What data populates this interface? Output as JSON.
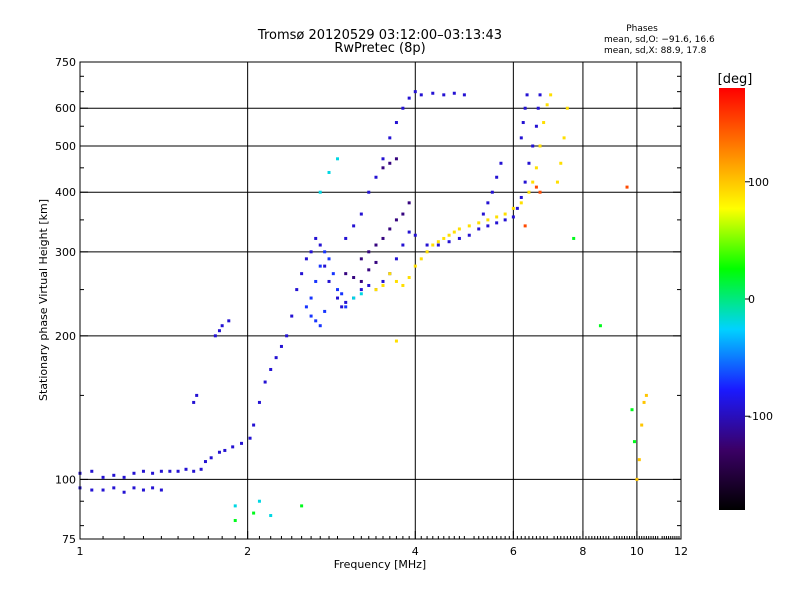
{
  "chart_data": {
    "type": "scatter",
    "title": "Tromsø 20120529 03:12:00–03:13:43",
    "subtitle": "RwPretec (8p)",
    "xlabel": "Frequency [MHz]",
    "ylabel": "Stationary phase Virtual Height [km]",
    "x_scale": "log",
    "y_scale": "log",
    "xlim": [
      1,
      12
    ],
    "ylim": [
      75,
      750
    ],
    "x_ticks": [
      1,
      2,
      4,
      6,
      8,
      10,
      12
    ],
    "y_ticks": [
      75,
      100,
      200,
      300,
      400,
      500,
      600,
      750
    ],
    "x_grid": [
      2,
      4,
      6,
      8,
      10
    ],
    "y_grid": [
      100,
      200,
      300,
      400,
      500,
      600
    ],
    "grid": true,
    "phase_stats": {
      "heading": "Phases",
      "line_o": "mean, sd,O: −91.6, 16.6",
      "line_x": "mean, sd,X:  88.9, 17.8"
    },
    "colorbar": {
      "label": "[deg]",
      "ticks": [
        100,
        0,
        -100
      ],
      "range": [
        -180,
        180
      ],
      "colors": [
        "#000000",
        "#3b0066",
        "#1a1aff",
        "#00d2ff",
        "#00ff00",
        "#ffff00",
        "#ff7f00",
        "#ff0000"
      ]
    },
    "series": [
      {
        "phase": -92,
        "points": [
          [
            1.0,
            96
          ],
          [
            1.05,
            95
          ],
          [
            1.1,
            95
          ],
          [
            1.15,
            96
          ],
          [
            1.2,
            94
          ],
          [
            1.25,
            96
          ],
          [
            1.3,
            95
          ],
          [
            1.35,
            96
          ],
          [
            1.4,
            95
          ],
          [
            1.0,
            103
          ],
          [
            1.05,
            104
          ],
          [
            1.1,
            101
          ],
          [
            1.15,
            102
          ],
          [
            1.2,
            101
          ],
          [
            1.25,
            103
          ],
          [
            1.3,
            104
          ],
          [
            1.35,
            103
          ],
          [
            1.4,
            104
          ],
          [
            1.45,
            104
          ],
          [
            1.5,
            104
          ],
          [
            1.55,
            105
          ],
          [
            1.6,
            104
          ],
          [
            1.65,
            105
          ],
          [
            1.68,
            109
          ],
          [
            1.72,
            111
          ],
          [
            1.78,
            114
          ],
          [
            1.82,
            115
          ],
          [
            1.88,
            117
          ],
          [
            1.95,
            119
          ],
          [
            2.02,
            122
          ],
          [
            2.05,
            130
          ],
          [
            2.1,
            145
          ],
          [
            2.15,
            160
          ],
          [
            2.2,
            170
          ],
          [
            2.25,
            180
          ],
          [
            2.3,
            190
          ],
          [
            2.35,
            200
          ],
          [
            1.6,
            145
          ],
          [
            1.62,
            150
          ],
          [
            1.75,
            200
          ],
          [
            1.78,
            205
          ],
          [
            1.8,
            210
          ],
          [
            1.85,
            215
          ],
          [
            2.4,
            220
          ],
          [
            2.45,
            250
          ],
          [
            2.5,
            270
          ],
          [
            2.55,
            290
          ],
          [
            2.6,
            300
          ],
          [
            2.65,
            320
          ],
          [
            2.7,
            310
          ],
          [
            2.75,
            280
          ],
          [
            2.8,
            260
          ],
          [
            2.9,
            240
          ],
          [
            2.95,
            230
          ],
          [
            3.0,
            235
          ],
          [
            3.1,
            240
          ],
          [
            3.2,
            250
          ],
          [
            3.3,
            255
          ],
          [
            3.4,
            250
          ],
          [
            3.5,
            260
          ],
          [
            3.6,
            270
          ],
          [
            3.7,
            290
          ],
          [
            3.8,
            310
          ],
          [
            3.9,
            330
          ],
          [
            4.0,
            325
          ],
          [
            4.2,
            310
          ],
          [
            4.4,
            310
          ],
          [
            4.6,
            315
          ],
          [
            4.8,
            320
          ],
          [
            5.0,
            325
          ],
          [
            5.2,
            335
          ],
          [
            5.4,
            340
          ],
          [
            5.6,
            345
          ],
          [
            5.8,
            350
          ],
          [
            6.0,
            355
          ],
          [
            6.1,
            370
          ],
          [
            6.2,
            390
          ],
          [
            6.3,
            420
          ],
          [
            6.4,
            460
          ],
          [
            6.5,
            500
          ],
          [
            6.6,
            550
          ],
          [
            6.65,
            600
          ],
          [
            6.7,
            640
          ],
          [
            6.2,
            520
          ],
          [
            6.25,
            560
          ],
          [
            6.3,
            600
          ],
          [
            6.35,
            640
          ],
          [
            5.3,
            360
          ],
          [
            5.4,
            380
          ],
          [
            5.5,
            400
          ],
          [
            5.6,
            430
          ],
          [
            5.7,
            460
          ],
          [
            3.0,
            320
          ],
          [
            3.1,
            340
          ],
          [
            3.2,
            360
          ],
          [
            3.3,
            400
          ],
          [
            3.4,
            430
          ],
          [
            3.5,
            470
          ],
          [
            3.6,
            520
          ],
          [
            3.7,
            560
          ],
          [
            3.8,
            600
          ],
          [
            3.9,
            630
          ],
          [
            4.0,
            650
          ],
          [
            4.1,
            640
          ],
          [
            4.3,
            645
          ],
          [
            4.5,
            640
          ],
          [
            4.7,
            645
          ],
          [
            4.9,
            640
          ]
        ]
      },
      {
        "phase": -70,
        "points": [
          [
            2.6,
            240
          ],
          [
            2.65,
            260
          ],
          [
            2.7,
            280
          ],
          [
            2.75,
            300
          ],
          [
            2.8,
            290
          ],
          [
            2.85,
            270
          ],
          [
            2.9,
            250
          ],
          [
            2.95,
            245
          ],
          [
            3.0,
            230
          ],
          [
            2.55,
            230
          ],
          [
            2.6,
            220
          ],
          [
            2.65,
            215
          ],
          [
            2.7,
            210
          ],
          [
            2.75,
            225
          ]
        ]
      },
      {
        "phase": -120,
        "points": [
          [
            3.2,
            290
          ],
          [
            3.3,
            300
          ],
          [
            3.4,
            310
          ],
          [
            3.5,
            320
          ],
          [
            3.6,
            335
          ],
          [
            3.7,
            350
          ],
          [
            3.8,
            360
          ],
          [
            3.9,
            380
          ],
          [
            3.0,
            270
          ],
          [
            3.1,
            265
          ],
          [
            3.2,
            260
          ],
          [
            3.3,
            275
          ],
          [
            3.4,
            285
          ],
          [
            3.5,
            450
          ],
          [
            3.6,
            460
          ],
          [
            3.7,
            470
          ]
        ]
      },
      {
        "phase": 90,
        "points": [
          [
            3.6,
            270
          ],
          [
            3.7,
            260
          ],
          [
            3.8,
            255
          ],
          [
            3.9,
            265
          ],
          [
            4.0,
            280
          ],
          [
            4.1,
            290
          ],
          [
            4.2,
            300
          ],
          [
            4.3,
            310
          ],
          [
            4.4,
            315
          ],
          [
            4.5,
            320
          ],
          [
            4.6,
            325
          ],
          [
            4.7,
            330
          ],
          [
            4.8,
            335
          ],
          [
            5.0,
            340
          ],
          [
            5.2,
            345
          ],
          [
            5.4,
            350
          ],
          [
            5.6,
            355
          ],
          [
            5.8,
            360
          ],
          [
            6.0,
            370
          ],
          [
            6.2,
            380
          ],
          [
            6.4,
            400
          ],
          [
            6.5,
            420
          ],
          [
            6.6,
            450
          ],
          [
            6.7,
            500
          ],
          [
            6.8,
            560
          ],
          [
            6.9,
            610
          ],
          [
            7.0,
            640
          ],
          [
            7.2,
            420
          ],
          [
            7.3,
            460
          ],
          [
            7.4,
            520
          ],
          [
            7.5,
            600
          ],
          [
            3.4,
            250
          ],
          [
            3.5,
            255
          ],
          [
            3.7,
            195
          ]
        ]
      },
      {
        "phase": -20,
        "points": [
          [
            2.7,
            400
          ],
          [
            2.8,
            440
          ],
          [
            2.9,
            470
          ],
          [
            2.1,
            90
          ],
          [
            2.2,
            84
          ],
          [
            1.9,
            88
          ],
          [
            3.1,
            240
          ],
          [
            3.2,
            245
          ]
        ]
      },
      {
        "phase": 20,
        "points": [
          [
            1.9,
            82
          ],
          [
            2.05,
            85
          ],
          [
            2.5,
            88
          ],
          [
            8.6,
            210
          ],
          [
            7.7,
            320
          ],
          [
            9.8,
            140
          ],
          [
            9.9,
            120
          ]
        ]
      },
      {
        "phase": 100,
        "points": [
          [
            10.0,
            100
          ],
          [
            10.1,
            110
          ],
          [
            10.2,
            130
          ],
          [
            10.3,
            145
          ],
          [
            10.4,
            150
          ]
        ]
      },
      {
        "phase": 150,
        "points": [
          [
            6.6,
            410
          ],
          [
            6.7,
            400
          ],
          [
            9.6,
            410
          ],
          [
            6.3,
            340
          ]
        ]
      }
    ]
  }
}
